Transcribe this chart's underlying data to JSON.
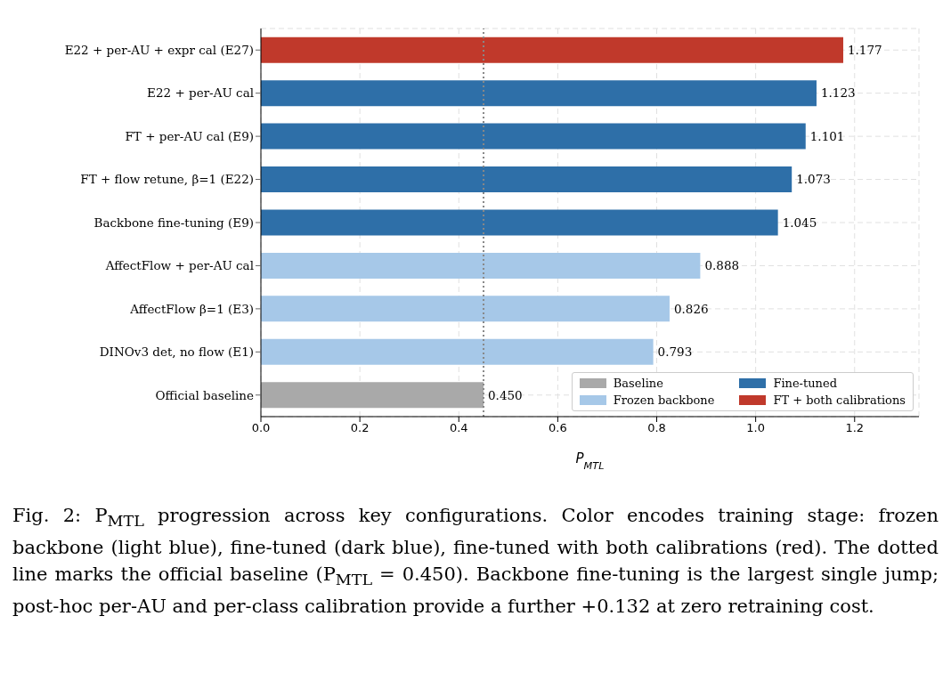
{
  "chart_data": {
    "type": "bar",
    "orientation": "horizontal",
    "stacked": true,
    "xlabel": "P$_{MTL}$",
    "categories": [
      "E22 + per-AU + expr cal (E27)",
      "E22 + per-AU cal",
      "FT + per-AU cal (E9)",
      "FT + flow retune, β=1 (E22)",
      "Backbone fine-tuning (E9)",
      "AffectFlow + per-AU cal",
      "AffectFlow β=1 (E3)",
      "DINOv3 det, no flow (E1)",
      "Official baseline"
    ],
    "series": [
      {
        "name": "Baseline",
        "color": "#a9a9a9",
        "values": [
          null,
          null,
          null,
          null,
          null,
          null,
          null,
          null,
          0.45
        ],
        "value_labels": [
          null,
          null,
          null,
          null,
          null,
          null,
          null,
          null,
          "0.450"
        ]
      },
      {
        "name": "Frozen backbone",
        "color": "#a6c8e8",
        "values": [
          null,
          null,
          null,
          null,
          null,
          0.888,
          0.826,
          0.793,
          null
        ],
        "value_labels": [
          null,
          null,
          null,
          null,
          null,
          "0.888",
          "0.826",
          "0.793",
          null
        ]
      },
      {
        "name": "Fine-tuned",
        "color": "#2e6fa8",
        "values": [
          null,
          1.123,
          1.101,
          1.073,
          1.045,
          null,
          null,
          null,
          null
        ],
        "value_labels": [
          null,
          "1.123",
          "1.101",
          "1.073",
          "1.045",
          null,
          null,
          null,
          null
        ]
      },
      {
        "name": "FT + both calibrations",
        "color": "#c0392b",
        "values": [
          1.177,
          null,
          null,
          null,
          null,
          null,
          null,
          null,
          null
        ],
        "value_labels": [
          "1.177",
          null,
          null,
          null,
          null,
          null,
          null,
          null,
          null
        ]
      }
    ],
    "xlim": [
      0,
      1.33
    ],
    "xticks": [
      {
        "value": 0,
        "label": "0.0"
      },
      0.2,
      0.4,
      0.6,
      0.8,
      {
        "value": 1,
        "label": "1.0"
      },
      1.2
    ],
    "grid": true,
    "legend": "bottom right",
    "ref_lines": [
      {
        "axis": "x",
        "value": 0.45,
        "color": "#888888",
        "line_style": "dotted"
      }
    ],
    "annotations": [
      "Fig. 2: P$_{MTL}$ progression across key configurations. Color encodes training stage: frozen backbone (light blue), fine-tuned (dark blue), fine-tuned with both calibrations (red). The dotted line marks the official baseline (P$_{MTL}$ = 0.450). Backbone fine-tuning is the largest single jump; post-hoc per-AU and per-class calibration provide a further +0.132 at zero retraining cost."
    ]
  }
}
